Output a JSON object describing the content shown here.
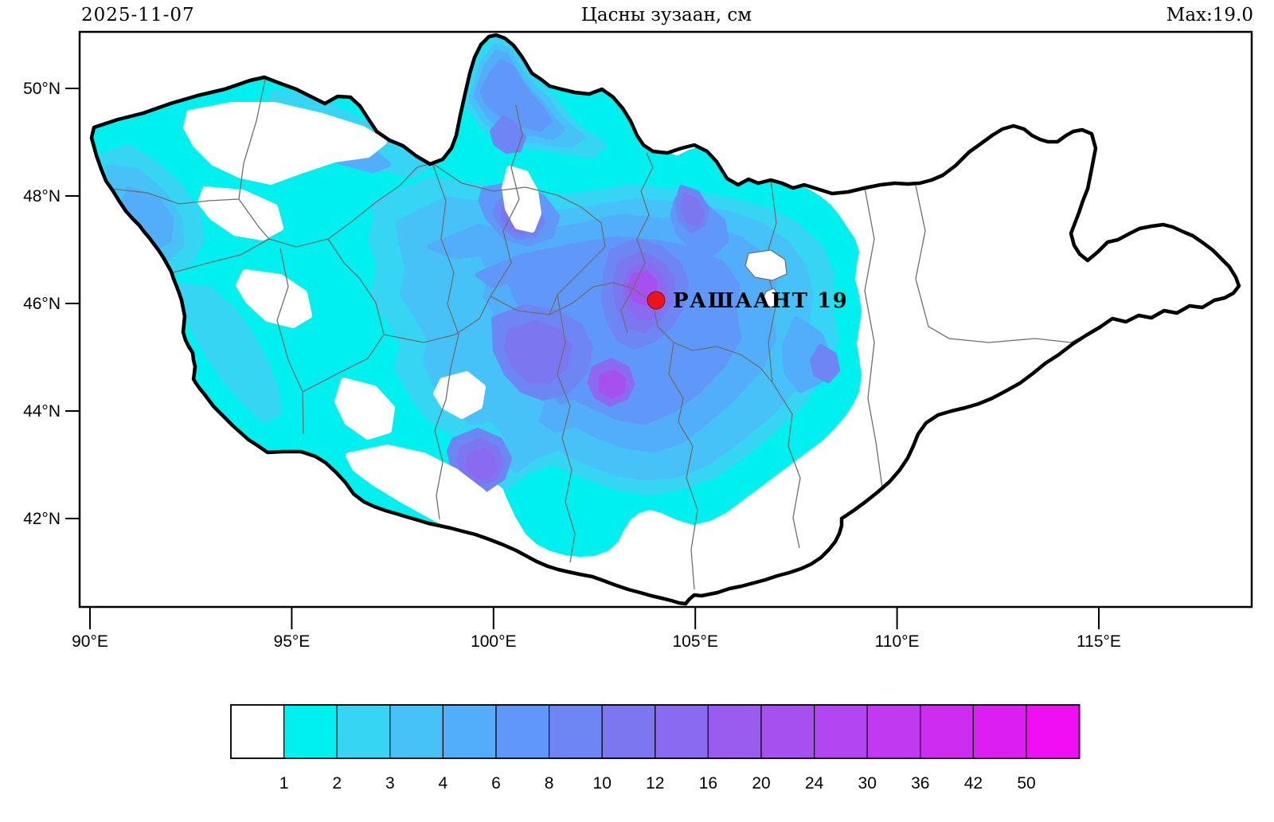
{
  "header": {
    "date": "2025-11-07",
    "title": "Цасны зузаан, см",
    "max_label": "Max:19.0"
  },
  "station": {
    "label": "РАШААНТ 19",
    "name": "РАШААНТ",
    "value": "19",
    "marker_color": "#e8141e",
    "marker_edge": "#990000"
  },
  "axes": {
    "lon_ticks": [
      "90°E",
      "95°E",
      "100°E",
      "105°E",
      "110°E",
      "115°E"
    ],
    "lat_ticks": [
      "50°N",
      "48°N",
      "46°N",
      "44°N",
      "42°N"
    ]
  },
  "colorbar": {
    "tick_labels": [
      "1",
      "2",
      "3",
      "4",
      "6",
      "8",
      "10",
      "12",
      "16",
      "20",
      "24",
      "30",
      "36",
      "42",
      "50"
    ],
    "cell_colors": [
      "#ffffff",
      "#00efef",
      "#36d5f3",
      "#46c2f8",
      "#52adfa",
      "#5f98f8",
      "#6d86f4",
      "#7c76f1",
      "#8a6af0",
      "#9a5cef",
      "#a651ef",
      "#b246f0",
      "#c13af1",
      "#cf2cf2",
      "#dd1ef3",
      "#f00ef2"
    ],
    "units": "cm"
  },
  "levels": {
    "l1": "#00efef",
    "l2": "#36d5f3",
    "l3": "#46c2f8",
    "l4": "#52adfa",
    "l5": "#5f98f8",
    "l6": "#6d86f4",
    "l7": "#7c76f1",
    "l8": "#8a6af0",
    "l9": "#a651ef"
  },
  "map": {
    "border_color": "#000000",
    "region_line_color": "#6e6e6e",
    "frame_color": "#000000",
    "hole_color": "#ffffff"
  }
}
